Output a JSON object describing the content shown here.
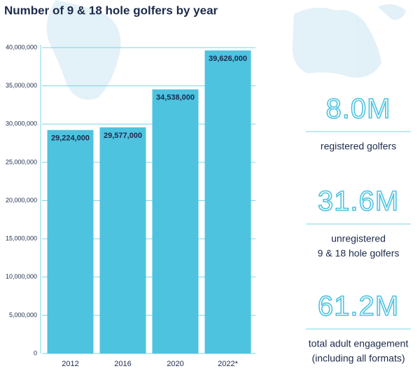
{
  "chart_data": {
    "type": "bar",
    "title": "Number of 9 & 18 hole golfers by year",
    "categories": [
      "2012",
      "2016",
      "2020",
      "2022*"
    ],
    "values": [
      29224000,
      29577000,
      34538000,
      39626000
    ],
    "value_labels": [
      "29,224,000",
      "29,577,000",
      "34,538,000",
      "39,626,000"
    ],
    "color": "#4dc3e0",
    "grid": true,
    "ylim": [
      0,
      40000000
    ],
    "yticks": [
      0,
      {
        "value": 5000000,
        "label": "5,000,000"
      },
      {
        "value": 10000000,
        "label": "10,000,000"
      },
      {
        "value": 15000000,
        "label": "15,000,000"
      },
      {
        "value": 20000000,
        "label": "20,000,000"
      },
      {
        "value": 25000000,
        "label": "25,000,000"
      },
      {
        "value": 30000000,
        "label": "30,000,000"
      },
      {
        "value": 35000000,
        "label": "35,000,000"
      },
      {
        "value": 40000000,
        "label": "40,000,000"
      }
    ]
  },
  "stats": [
    {
      "figure": "8.0M",
      "caption_lines": [
        "registered golfers"
      ]
    },
    {
      "figure": "31.6M",
      "caption_lines": [
        "unregistered",
        "9 & 18 hole golfers"
      ]
    },
    {
      "figure": "61.2M",
      "caption_lines": [
        "total adult engagement",
        "(including all formats)"
      ]
    }
  ]
}
